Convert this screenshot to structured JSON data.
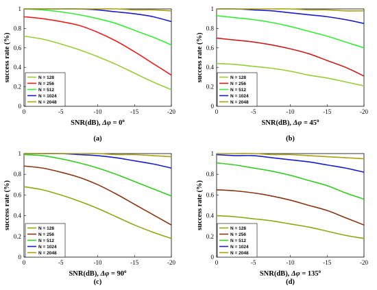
{
  "chart_data": [
    {
      "id": "a",
      "type": "line",
      "xlabel_prefix": "SNR(dB), ",
      "xlabel_symbol": "Δφ = ",
      "xlabel_value": "0",
      "xlabel_sup": "o",
      "ylabel": "success rate (%)",
      "caption": "(a)",
      "xlim": [
        0,
        -20
      ],
      "ylim": [
        0,
        1
      ],
      "xticks": [
        "0",
        "-5",
        "-10",
        "-15",
        "-20"
      ],
      "yticks": [
        "0",
        "0.2",
        "0.4",
        "0.6",
        "0.8",
        "1"
      ],
      "x": [
        0,
        -2.5,
        -5,
        -7.5,
        -10,
        -12.5,
        -15,
        -17.5,
        -20
      ],
      "legend_position": "bottom-left",
      "series": [
        {
          "name": "N = 128",
          "color": "#99cc33",
          "values": [
            0.72,
            0.69,
            0.64,
            0.58,
            0.51,
            0.43,
            0.34,
            0.25,
            0.17
          ]
        },
        {
          "name": "N = 256",
          "color": "#ee1c1c",
          "values": [
            0.92,
            0.9,
            0.87,
            0.83,
            0.76,
            0.67,
            0.56,
            0.44,
            0.32
          ]
        },
        {
          "name": "N = 512",
          "color": "#33ee33",
          "values": [
            1.0,
            0.99,
            0.97,
            0.94,
            0.9,
            0.85,
            0.78,
            0.71,
            0.63
          ]
        },
        {
          "name": "N = 1024",
          "color": "#1a1acc",
          "values": [
            1.0,
            1.0,
            1.0,
            1.0,
            0.99,
            0.97,
            0.95,
            0.92,
            0.87
          ]
        },
        {
          "name": "N = 2048",
          "color": "#aaa010",
          "values": [
            1.0,
            1.0,
            1.0,
            1.0,
            1.0,
            1.0,
            0.99,
            0.99,
            0.98
          ]
        }
      ]
    },
    {
      "id": "b",
      "type": "line",
      "xlabel_prefix": "SNR(dB), ",
      "xlabel_symbol": "Δφ = ",
      "xlabel_value": "45",
      "xlabel_sup": "o",
      "ylabel": "success rate (%)",
      "caption": "(b)",
      "xlim": [
        0,
        -20
      ],
      "ylim": [
        0,
        1
      ],
      "xticks": [
        "0",
        "-5",
        "-10",
        "-15",
        "-20"
      ],
      "yticks": [
        "0",
        "0.2",
        "0.4",
        "0.6",
        "0.8",
        "1"
      ],
      "x": [
        0,
        -2.5,
        -5,
        -7.5,
        -10,
        -12.5,
        -15,
        -17.5,
        -20
      ],
      "legend_position": "bottom-left",
      "series": [
        {
          "name": "N = 128",
          "color": "#99cc33",
          "values": [
            0.44,
            0.43,
            0.41,
            0.39,
            0.36,
            0.32,
            0.29,
            0.25,
            0.21
          ]
        },
        {
          "name": "N = 256",
          "color": "#cc1a1a",
          "values": [
            0.7,
            0.68,
            0.66,
            0.63,
            0.59,
            0.54,
            0.47,
            0.4,
            0.31
          ]
        },
        {
          "name": "N = 512",
          "color": "#33ee33",
          "values": [
            0.93,
            0.91,
            0.89,
            0.86,
            0.82,
            0.77,
            0.72,
            0.66,
            0.6
          ]
        },
        {
          "name": "N = 1024",
          "color": "#1a1acc",
          "values": [
            1.0,
            1.0,
            0.99,
            0.98,
            0.96,
            0.94,
            0.92,
            0.89,
            0.85
          ]
        },
        {
          "name": "N = 2048",
          "color": "#aaa010",
          "values": [
            1.0,
            1.0,
            1.0,
            1.0,
            1.0,
            0.99,
            0.99,
            0.98,
            0.98
          ]
        }
      ]
    },
    {
      "id": "c",
      "type": "line",
      "xlabel_prefix": "SNR(dB), ",
      "xlabel_symbol": "Δφ = ",
      "xlabel_value": "90",
      "xlabel_sup": "o",
      "ylabel": "success rate (%)",
      "caption": "(c)",
      "xlim": [
        0,
        -20
      ],
      "ylim": [
        0,
        1
      ],
      "xticks": [
        "0",
        "-5",
        "-10",
        "-15",
        "-20"
      ],
      "yticks": [
        "0",
        "0.2",
        "0.4",
        "0.6",
        "0.8",
        "1"
      ],
      "x": [
        0,
        -2.5,
        -5,
        -7.5,
        -10,
        -12.5,
        -15,
        -17.5,
        -20
      ],
      "legend_position": "bottom-left",
      "series": [
        {
          "name": "N = 128",
          "color": "#88aa11",
          "values": [
            0.68,
            0.65,
            0.6,
            0.54,
            0.47,
            0.39,
            0.31,
            0.24,
            0.18
          ]
        },
        {
          "name": "N = 256",
          "color": "#883311",
          "values": [
            0.88,
            0.86,
            0.82,
            0.77,
            0.7,
            0.61,
            0.51,
            0.41,
            0.31
          ]
        },
        {
          "name": "N = 512",
          "color": "#33cc22",
          "values": [
            0.99,
            0.98,
            0.95,
            0.91,
            0.86,
            0.8,
            0.73,
            0.66,
            0.59
          ]
        },
        {
          "name": "N = 1024",
          "color": "#1a1acc",
          "values": [
            1.0,
            1.0,
            1.0,
            0.99,
            0.98,
            0.96,
            0.93,
            0.9,
            0.86
          ]
        },
        {
          "name": "N = 2048",
          "color": "#aaa010",
          "values": [
            1.0,
            1.0,
            1.0,
            1.0,
            1.0,
            0.99,
            0.99,
            0.98,
            0.97
          ]
        }
      ]
    },
    {
      "id": "d",
      "type": "line",
      "xlabel_prefix": "SNR(dB), ",
      "xlabel_symbol": "Δφ = ",
      "xlabel_value": "135",
      "xlabel_sup": "o",
      "ylabel": "success rate (%)",
      "caption": "(d)",
      "xlim": [
        0,
        -20
      ],
      "ylim": [
        0,
        1
      ],
      "xticks": [
        "0",
        "-5",
        "-10",
        "-15",
        "-20"
      ],
      "yticks": [
        "0",
        "0.2",
        "0.4",
        "0.6",
        "0.8",
        "1"
      ],
      "x": [
        0,
        -2.5,
        -5,
        -7.5,
        -10,
        -12.5,
        -15,
        -17.5,
        -20
      ],
      "legend_position": "bottom-left",
      "series": [
        {
          "name": "N = 128",
          "color": "#88aa11",
          "values": [
            0.4,
            0.39,
            0.37,
            0.35,
            0.32,
            0.29,
            0.25,
            0.21,
            0.18
          ]
        },
        {
          "name": "N = 256",
          "color": "#883311",
          "values": [
            0.65,
            0.64,
            0.62,
            0.59,
            0.55,
            0.5,
            0.45,
            0.38,
            0.31
          ]
        },
        {
          "name": "N = 512",
          "color": "#33cc22",
          "values": [
            0.91,
            0.89,
            0.86,
            0.83,
            0.79,
            0.74,
            0.69,
            0.62,
            0.56
          ]
        },
        {
          "name": "N = 1024",
          "color": "#1a1acc",
          "values": [
            0.99,
            0.98,
            0.98,
            0.96,
            0.94,
            0.92,
            0.89,
            0.86,
            0.82
          ]
        },
        {
          "name": "N = 2048",
          "color": "#aaa010",
          "values": [
            1.0,
            1.0,
            1.0,
            0.99,
            0.99,
            0.98,
            0.97,
            0.96,
            0.95
          ]
        }
      ]
    }
  ]
}
